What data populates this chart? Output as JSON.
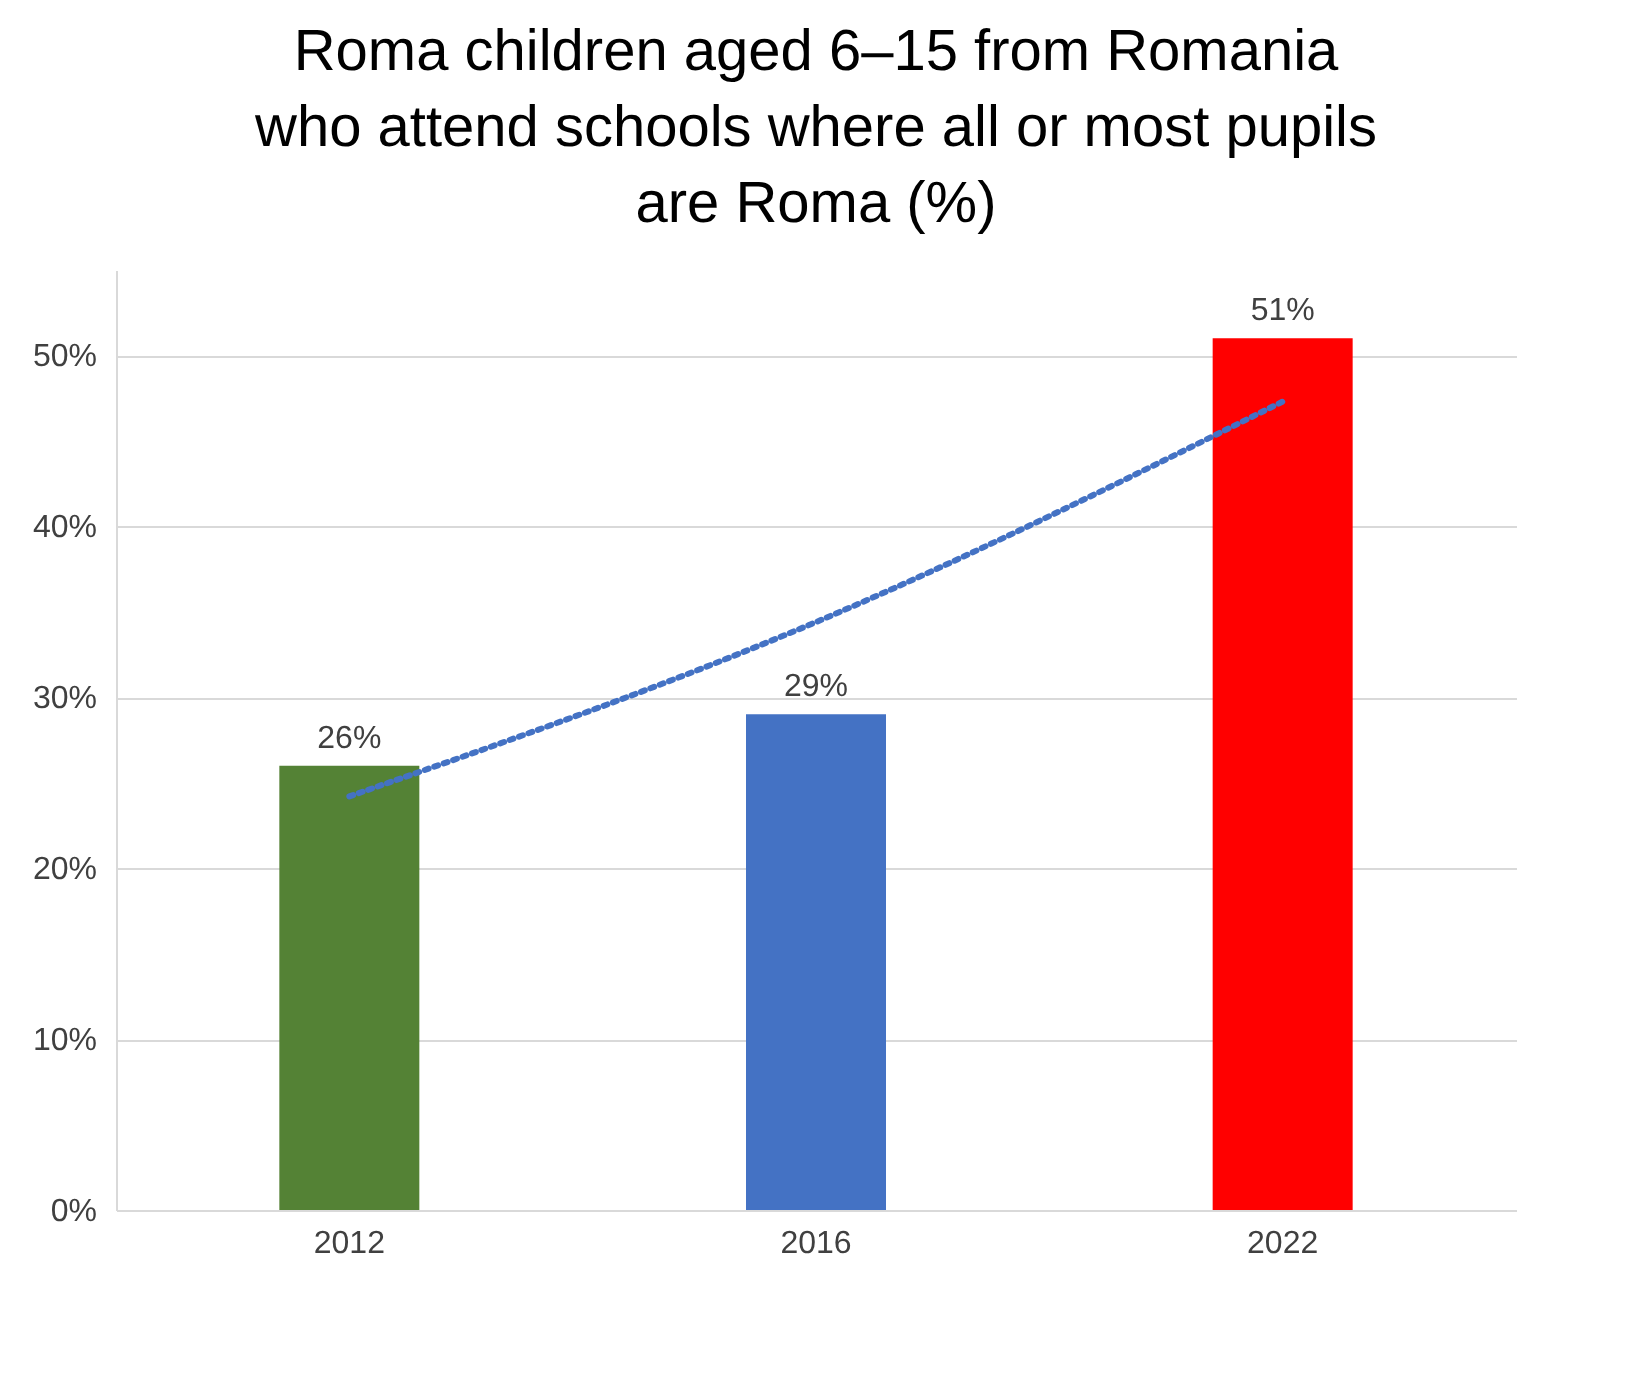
{
  "chart_data": {
    "type": "bar",
    "title": [
      "Roma children aged 6–15 from Romania",
      "who attend schools where all or most pupils",
      "are Roma (%)"
    ],
    "categories": [
      "2012",
      "2016",
      "2022"
    ],
    "series": [
      {
        "colors": [
          "#548235",
          "#4472c4",
          "#ff0000"
        ],
        "values": [
          26,
          29,
          51
        ],
        "value_labels": [
          "26%",
          "29%",
          "51%"
        ]
      },
      {
        "type": "line",
        "values": [
          24.2,
          34.4,
          47.3
        ],
        "color": "#4472c4",
        "line_style": "dotted",
        "marker": "none"
      }
    ],
    "ylim": [
      0,
      55
    ],
    "yticks": [
      {
        "value": 0,
        "label": "0%"
      },
      {
        "value": 10,
        "label": "10%"
      },
      {
        "value": 20,
        "label": "20%"
      },
      {
        "value": 30,
        "label": "30%"
      },
      {
        "value": 40,
        "label": "40%"
      },
      {
        "value": 50,
        "label": "50%"
      }
    ],
    "grid": "y"
  }
}
